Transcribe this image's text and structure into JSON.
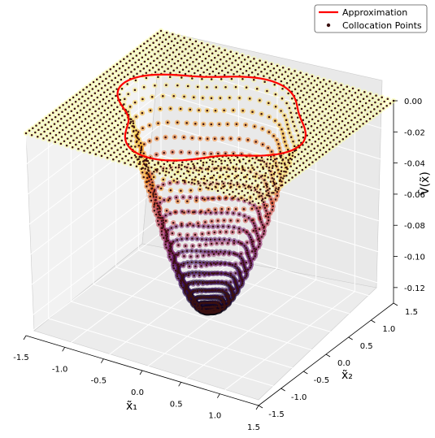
{
  "chart_data": {
    "type": "scatter",
    "projection": "3d-surface",
    "xlabel": "x̃₁",
    "ylabel": "x̃₂",
    "zlabel": "V̂(x̃)",
    "x_ticks": [
      "-1.5",
      "-1.0",
      "-0.5",
      "0.0",
      "0.5",
      "1.0",
      "1.5"
    ],
    "y_ticks": [
      "-1.5",
      "-1.0",
      "-0.5",
      "0.0",
      "0.5",
      "1.0",
      "1.5"
    ],
    "z_ticks": [
      "0.00",
      "-0.02",
      "-0.04",
      "-0.06",
      "-0.08",
      "-0.10",
      "-0.12"
    ],
    "xlim": [
      -1.5,
      1.5
    ],
    "ylim": [
      -1.5,
      1.5
    ],
    "zlim": [
      -0.13,
      0.0
    ],
    "z_min": -0.125,
    "colormap": "inferno",
    "grid": true,
    "legend_position": "top-right",
    "series": [
      {
        "name": "Approximation",
        "kind": "contour-line",
        "color": "#ff0000"
      },
      {
        "name": "Collocation Points",
        "kind": "scatter",
        "color": "#3a1010"
      }
    ]
  }
}
